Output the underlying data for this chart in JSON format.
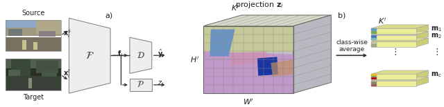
{
  "bg_color": "#ffffff",
  "fig_width": 6.4,
  "fig_height": 1.55,
  "dpi": 100,
  "label_a": "a)",
  "label_b": "b)",
  "label_source": "Source",
  "label_target": "Target",
  "label_F": "$\\mathcal{F}$",
  "label_D": "$\\mathcal{D}$",
  "label_P": "$\\mathcal{P}$",
  "label_xs": "$\\mathbf{x}_i^s$",
  "label_xt": "$\\mathbf{x}_i^t$",
  "label_fi": "$\\mathbf{f}_i$",
  "label_yhat": "$\\hat{\\mathbf{y}}_i$",
  "label_zi_arrow": "$z_i$",
  "label_zi_proj": "projection $\\mathbf{z}_i$",
  "label_Kprime_3d": "$K'$",
  "label_Hprime": "$H'$",
  "label_Wprime": "$W'$",
  "label_class_wise": "class-wise\naverage",
  "label_Kprime_b": "$K'$",
  "label_m1": "$\\mathbf{m}_1$",
  "label_m2": "$\\mathbf{m}_2$",
  "label_mc": "$\\mathbf{m}_c$",
  "label_dots": "$\\vdots$",
  "img_src_colors": [
    "#8899aa",
    "#667788",
    "#aabbcc",
    "#99aa88",
    "#778877"
  ],
  "img_tgt_colors": [
    "#334433",
    "#445544",
    "#556655",
    "#3a4a3a",
    "#2a3a2a"
  ],
  "seg_colors": {
    "olive": "#c8cc90",
    "blue_med": "#6090c8",
    "purple": "#c090c8",
    "dark_blue": "#1030a0",
    "pink": "#d090b0",
    "brown": "#c09080"
  },
  "bar_fc": "#eeee99",
  "bar_top_fc": "#dddd88",
  "bar_right_fc": "#cccc77",
  "bar_ec": "#aaaaaa",
  "m1_swatches": [
    "#5b9bd5",
    "#70ad47"
  ],
  "m2_swatches": [
    "#4472c4",
    "#70c6c3"
  ],
  "mc_swatches": [
    "#ffc000",
    "#70ad47",
    "#c00000"
  ],
  "arrow_color": "#333333",
  "line_color": "#333333",
  "shape_fc": "#eeeeee",
  "shape_ec": "#888888"
}
